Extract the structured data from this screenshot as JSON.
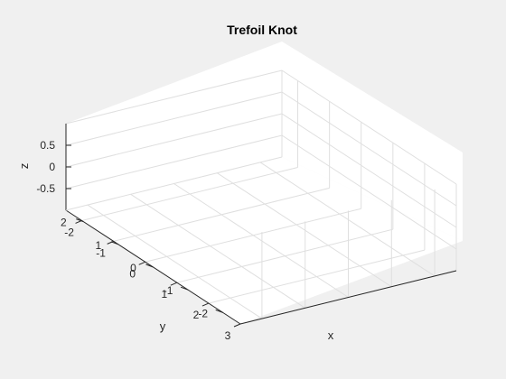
{
  "chart_data": {
    "type": "line",
    "title": "Trefoil Knot",
    "xlabel": "x",
    "ylabel": "y",
    "zlabel": "z",
    "x_ticks": [
      "-2",
      "-1",
      "0",
      "1",
      "2",
      "3"
    ],
    "y_ticks": [
      "-2",
      "-1",
      "0",
      "1",
      "2"
    ],
    "z_ticks": [
      "-0.5",
      "0",
      "0.5"
    ],
    "xlim": [
      -2.5,
      3
    ],
    "ylim": [
      -2.5,
      2.5
    ],
    "zlim": [
      -1,
      1
    ],
    "grid": true,
    "view": "3d",
    "series": []
  },
  "colors": {
    "background": "#f0f0f0",
    "plot_box": "#ffffff",
    "grid": "#dfdfdf",
    "axis": "#262626"
  }
}
